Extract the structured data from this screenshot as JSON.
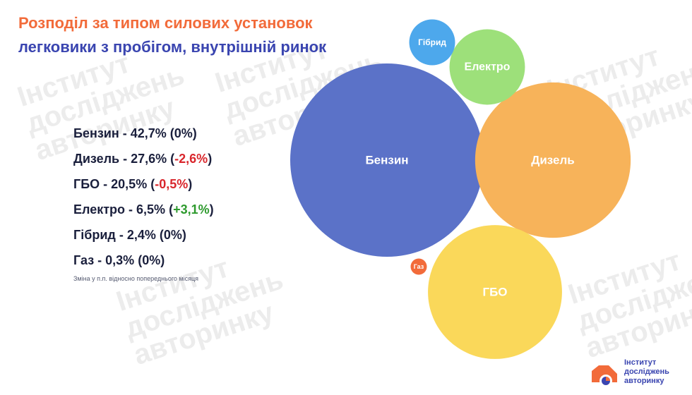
{
  "header": {
    "title_line1": "Розподіл за типом силових установок",
    "title_line2": "легковики з пробігом, внутрішній ринок"
  },
  "stats": [
    {
      "name": "Бензин",
      "share": "42,7%",
      "change": "0%",
      "trend": "none"
    },
    {
      "name": "Дизель",
      "share": "27,6%",
      "change": "-2,6%",
      "trend": "down"
    },
    {
      "name": "ГБО",
      "share": "20,5%",
      "change": "-0,5%",
      "trend": "down"
    },
    {
      "name": "Електро",
      "share": "6,5%",
      "change": "+3,1%",
      "trend": "up"
    },
    {
      "name": "Гібрид",
      "share": "2,4%",
      "change": "0%",
      "trend": "none"
    },
    {
      "name": "Газ",
      "share": "0,3%",
      "change": "0%",
      "trend": "none"
    }
  ],
  "footnote": "Зміна у п.п. відносно попереднього місяця",
  "chart_data": {
    "type": "bubble",
    "title": "Розподіл за типом силових установок",
    "subtitle": "легковики з пробігом, внутрішній ринок",
    "categories": [
      "Бензин",
      "Дизель",
      "ГБО",
      "Електро",
      "Гібрид",
      "Газ"
    ],
    "values": [
      42.7,
      27.6,
      20.5,
      6.5,
      2.4,
      0.3
    ],
    "change_pp": [
      0,
      -2.6,
      -0.5,
      3.1,
      0,
      0
    ],
    "colors": [
      "#5b72c8",
      "#f7b35a",
      "#fad85a",
      "#9de07a",
      "#4da8ec",
      "#f26b3a"
    ],
    "legend": "none"
  },
  "watermark": {
    "line1": "Інститут",
    "line2": "досліджень",
    "line3": "авторинку"
  },
  "logo": {
    "line1": "Інститут",
    "line2": "досліджень",
    "line3": "авторинку"
  },
  "colors": {
    "title_orange": "#f26b3a",
    "title_blue": "#3a45b0",
    "negative": "#d9262c",
    "positive": "#2e9a2e"
  }
}
